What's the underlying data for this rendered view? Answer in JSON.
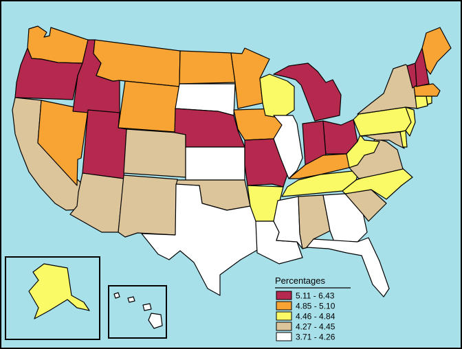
{
  "colors": {
    "ocean": "#a8e0ea",
    "bin_1": "#b5294e",
    "bin_2": "#f8a434",
    "bin_3": "#fafa66",
    "bin_4": "#dcc49b",
    "bin_5": "#ffffff"
  },
  "legend": {
    "title": "Percentages",
    "items": [
      {
        "label": "5.11 - 6.43",
        "color": "#b5294e"
      },
      {
        "label": "4.85 - 5.10",
        "color": "#f8a434"
      },
      {
        "label": "4.46 - 4.84",
        "color": "#fafa66"
      },
      {
        "label": "4.27 - 4.45",
        "color": "#dcc49b"
      },
      {
        "label": "3.71 - 4.26",
        "color": "#ffffff"
      }
    ]
  },
  "state_classes": {
    "WA": "4.85 - 5.10",
    "OR": "5.11 - 6.43",
    "CA": "4.27 - 4.45",
    "NV": "4.85 - 5.10",
    "ID": "5.11 - 6.43",
    "MT": "4.85 - 5.10",
    "WY": "4.85 - 5.10",
    "UT": "5.11 - 6.43",
    "AZ": "4.27 - 4.45",
    "CO": "4.27 - 4.45",
    "NM": "4.27 - 4.45",
    "ND": "4.85 - 5.10",
    "SD": "3.71 - 4.26",
    "NE": "5.11 - 6.43",
    "KS": "3.71 - 4.26",
    "OK": "4.27 - 4.45",
    "TX": "3.71 - 4.26",
    "MN": "4.85 - 5.10",
    "IA": "4.85 - 5.10",
    "MO": "5.11 - 6.43",
    "AR": "4.46 - 4.84",
    "LA": "3.71 - 4.26",
    "WI": "4.46 - 4.84",
    "IL": "3.71 - 4.26",
    "MI": "5.11 - 6.43",
    "IN": "5.11 - 6.43",
    "OH": "5.11 - 6.43",
    "KY": "4.85 - 5.10",
    "TN": "4.46 - 4.84",
    "MS": "3.71 - 4.26",
    "AL": "4.27 - 4.45",
    "GA": "3.71 - 4.26",
    "FL": "3.71 - 4.26",
    "SC": "4.27 - 4.45",
    "NC": "4.46 - 4.84",
    "VA": "4.27 - 4.45",
    "WV": "4.46 - 4.84",
    "MD": "4.27 - 4.45",
    "DE": "4.46 - 4.84",
    "PA": "4.46 - 4.84",
    "NJ": "4.46 - 4.84",
    "NY": "4.27 - 4.45",
    "CT": "4.46 - 4.84",
    "RI": "4.46 - 4.84",
    "MA": "4.85 - 5.10",
    "VT": "5.11 - 6.43",
    "NH": "5.11 - 6.43",
    "ME": "4.85 - 5.10",
    "AK": "4.46 - 4.84",
    "HI": "3.71 - 4.26"
  }
}
